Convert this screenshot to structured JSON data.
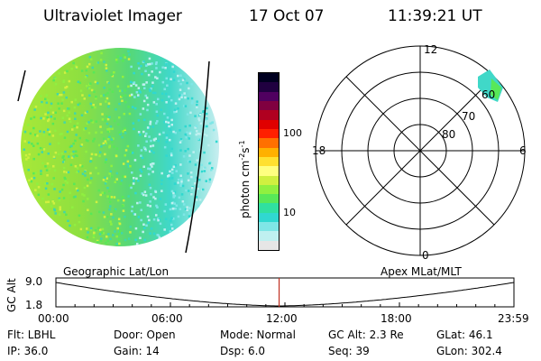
{
  "header": {
    "instrument": "Ultraviolet Imager",
    "date": "17 Oct 07",
    "time": "11:39:21 UT"
  },
  "colorbar": {
    "unit_label": "photon cm",
    "unit_exp1": "-2",
    "unit_s": "s",
    "unit_exp2": "-1",
    "ticks": [
      "100",
      "10"
    ],
    "colors": [
      "#e6e6e6",
      "#bff0f0",
      "#7fe6e6",
      "#30d8d0",
      "#30e0a0",
      "#58e858",
      "#90f040",
      "#d0f040",
      "#ffff80",
      "#ffe030",
      "#ffb000",
      "#ff7000",
      "#ff2000",
      "#e00000",
      "#b00020",
      "#800040",
      "#500060",
      "#200040",
      "#000020"
    ]
  },
  "polar": {
    "mlt_labels": {
      "top": "12",
      "left": "18",
      "right": "6",
      "bottom": "0"
    },
    "lat_labels": [
      "60",
      "70",
      "80"
    ]
  },
  "timeline": {
    "left_title": "Geographic Lat/Lon",
    "right_title": "Apex MLat/MLT",
    "ylabel": "GC Alt",
    "ymax": "9.0",
    "ymin": "1.8",
    "time_ticks": [
      "00:00",
      "06:00",
      "12:00",
      "18:00",
      "23:59"
    ],
    "current_time_fraction": 0.4873
  },
  "footer": {
    "flt": "Flt: LBHL",
    "ip": "IP: 36.0",
    "door": "Door: Open",
    "gain": "Gain: 14",
    "mode": "Mode: Normal",
    "dsp": "Dsp:     6.0",
    "gcalt": "GC Alt: 2.3 Re",
    "seq": "Seq: 39",
    "glat": "GLat:   46.1",
    "glon": "GLon: 302.4"
  }
}
